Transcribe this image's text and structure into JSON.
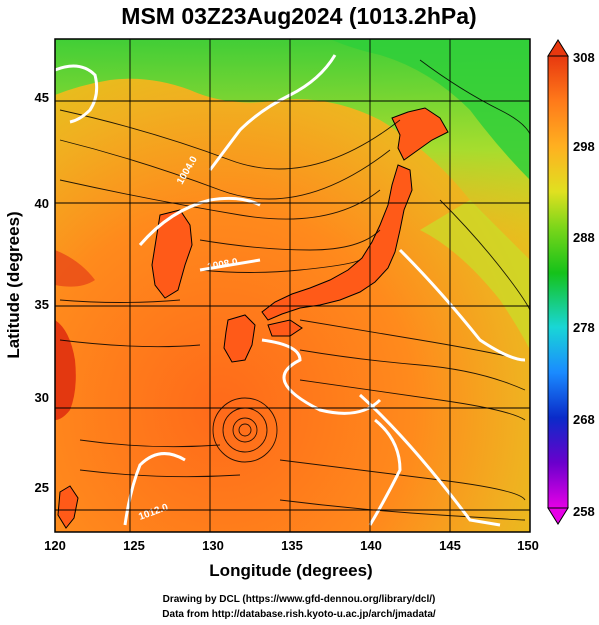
{
  "figure": {
    "title": "MSM 03Z23Aug2024 (1013.2hPa)",
    "xlabel": "Longitude (degrees)",
    "ylabel": "Latitude  (degrees)",
    "credit_line1": "Drawing by DCL (https://www.gfd-dennou.org/library/dcl/)",
    "credit_line2": "Data from http://database.rish.kyoto-u.ac.jp/arch/jmadata/"
  },
  "map": {
    "lon_range": [
      120,
      150
    ],
    "lat_range": [
      22.4,
      47.6
    ],
    "lon_ticks": [
      "120",
      "125",
      "130",
      "135",
      "140",
      "145",
      "150"
    ],
    "lat_ticks": [
      "25",
      "30",
      "35",
      "40",
      "45"
    ],
    "grid": true,
    "field": "surface air temperature (K) with streamlines",
    "contour_labels": [
      "1004.0",
      "1008.0",
      "1012.0"
    ],
    "features": [
      "Japan archipelago",
      "Korean peninsula",
      "Taiwan",
      "East China coast",
      "cyclonic vortex near 131E 28N"
    ]
  },
  "colorbar": {
    "min": 258,
    "max": 308,
    "tick_labels": [
      "308",
      "298",
      "288",
      "278",
      "268",
      "258"
    ],
    "colors": [
      "#e600e6",
      "#6a00cc",
      "#0a2bc9",
      "#1a8bff",
      "#19d6d6",
      "#15c21a",
      "#7bd61a",
      "#e0e020",
      "#ffb020",
      "#ff7a1a",
      "#e8380f"
    ]
  }
}
